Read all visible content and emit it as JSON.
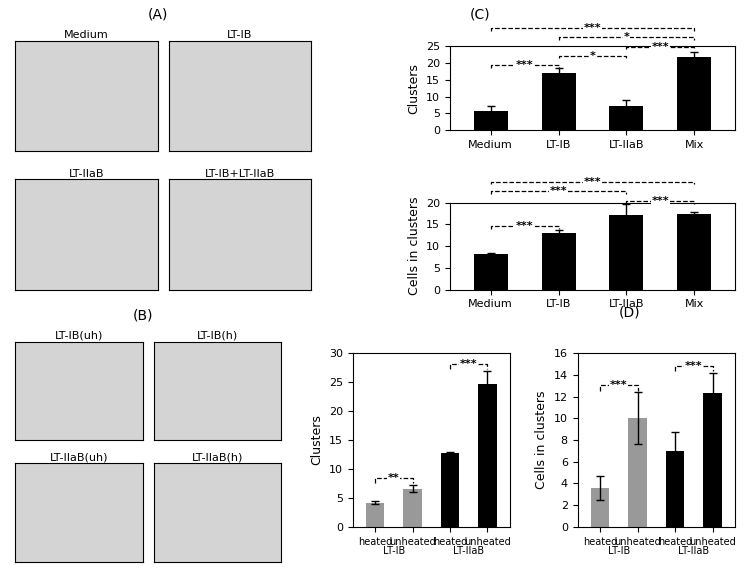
{
  "panels": [
    {
      "label": "(A)",
      "micrographs": [
        "Medium",
        "LT-IB",
        "LT-IIaB",
        "LT-IB+LT-IIaB"
      ]
    },
    {
      "label": "(B)",
      "micrographs": [
        "LT-IB(uh)",
        "LT-IB(h)",
        "LT-IIaB(uh)",
        "LT-IIaB(h)"
      ]
    }
  ],
  "chart_data": [
    {
      "panel": "(C)",
      "type": "bar",
      "y_label": "Clusters",
      "categories": [
        "Medium",
        "LT-IB",
        "LT-IIaB",
        "Mix"
      ],
      "values": [
        5.7,
        17.2,
        7.1,
        21.8
      ],
      "errors": [
        1.5,
        1.2,
        1.8,
        1.5
      ],
      "color": "#000000",
      "ylim": [
        0,
        25
      ],
      "yticks": [
        0,
        5,
        10,
        15,
        20,
        25
      ],
      "significance": [
        {
          "between": [
            0,
            1
          ],
          "label": "***"
        },
        {
          "between": [
            0,
            3
          ],
          "label": "***"
        },
        {
          "between": [
            1,
            3
          ],
          "label": "*"
        },
        {
          "between": [
            1,
            2
          ],
          "label": "*"
        },
        {
          "between": [
            2,
            3
          ],
          "label": "***"
        }
      ]
    },
    {
      "type": "bar",
      "y_label": "Cells in clusters",
      "categories": [
        "Medium",
        "LT-IB",
        "LT-IIaB",
        "Mix"
      ],
      "values": [
        8.1,
        13.0,
        17.1,
        17.4
      ],
      "errors": [
        0.3,
        0.8,
        2.5,
        0.5
      ],
      "color": "#000000",
      "ylim": [
        0,
        20
      ],
      "yticks": [
        0,
        5,
        10,
        15,
        20
      ],
      "significance": [
        {
          "between": [
            0,
            1
          ],
          "label": "***"
        },
        {
          "between": [
            0,
            3
          ],
          "label": "***"
        },
        {
          "between": [
            0,
            2
          ],
          "label": "***"
        },
        {
          "between": [
            2,
            3
          ],
          "label": "***"
        }
      ]
    },
    {
      "type": "bar",
      "y_label": "Clusters",
      "categories": [
        "heated",
        "unheated",
        "heated",
        "unheated"
      ],
      "group_labels": [
        {
          "label": "LT-IB",
          "categories": [
            0,
            1
          ]
        },
        {
          "label": "LT-IIaB",
          "categories": [
            2,
            3
          ]
        }
      ],
      "values": [
        4.2,
        6.6,
        12.8,
        24.7
      ],
      "errors": [
        0.2,
        0.6,
        0.2,
        2.2
      ],
      "colors": [
        "#999999",
        "#999999",
        "#000000",
        "#000000"
      ],
      "ylim": [
        0,
        30
      ],
      "yticks": [
        0,
        5,
        10,
        15,
        20,
        25,
        30
      ],
      "significance": [
        {
          "between": [
            0,
            1
          ],
          "label": "**"
        },
        {
          "between": [
            2,
            3
          ],
          "label": "***"
        }
      ]
    },
    {
      "panel": "(D)",
      "type": "bar",
      "y_label": "Cells in clusters",
      "categories": [
        "heated",
        "unheated",
        "heated",
        "unheated"
      ],
      "group_labels": [
        {
          "label": "LT-IB",
          "categories": [
            0,
            1
          ]
        },
        {
          "label": "LT-IIaB",
          "categories": [
            2,
            3
          ]
        }
      ],
      "values": [
        3.6,
        10.0,
        7.0,
        12.3
      ],
      "errors": [
        1.1,
        2.4,
        1.7,
        1.9
      ],
      "colors": [
        "#999999",
        "#999999",
        "#000000",
        "#000000"
      ],
      "ylim": [
        0,
        16
      ],
      "yticks": [
        0,
        2,
        4,
        6,
        8,
        10,
        12,
        14,
        16
      ],
      "significance": [
        {
          "between": [
            0,
            1
          ],
          "label": "***"
        },
        {
          "between": [
            2,
            3
          ],
          "label": "***"
        }
      ]
    }
  ]
}
